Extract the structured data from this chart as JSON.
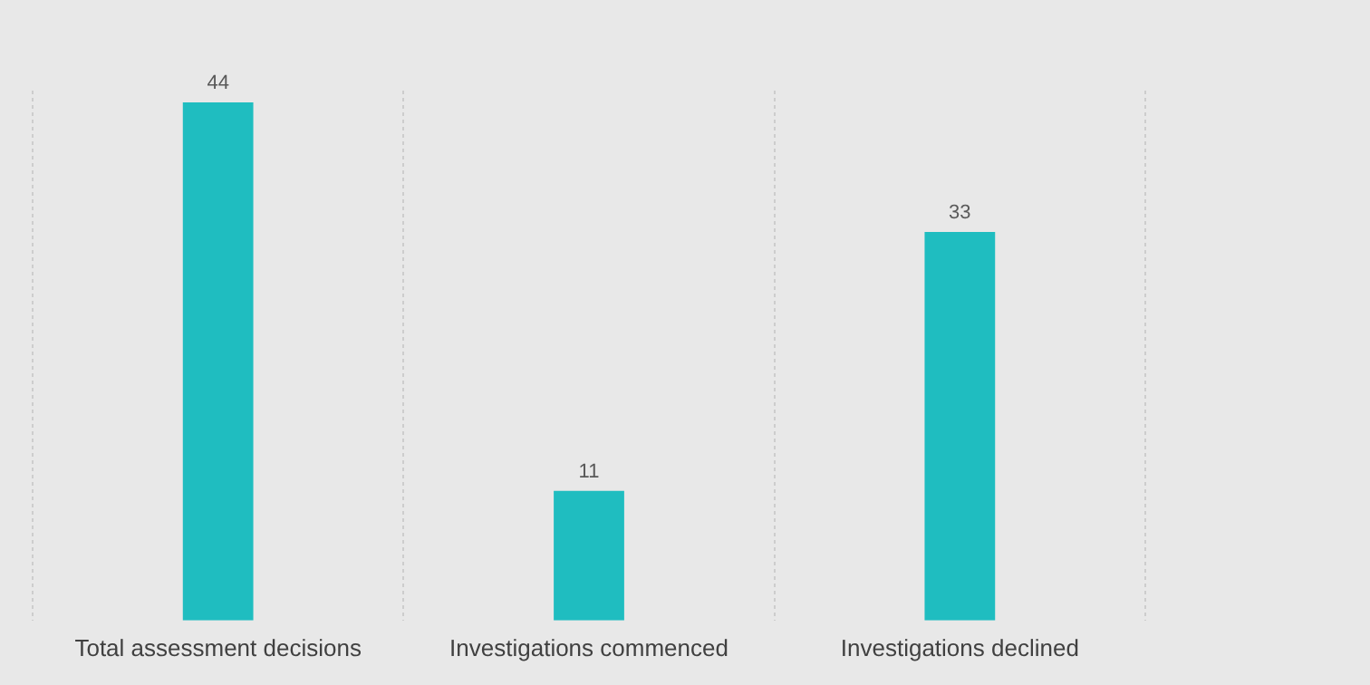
{
  "chart_data": {
    "type": "bar",
    "categories": [
      "Total assessment decisions",
      "Investigations commenced",
      "Investigations declined"
    ],
    "values": [
      44,
      11,
      33
    ],
    "color": "#1fbdc0",
    "data_labels": true,
    "grid": "x",
    "legend": false
  }
}
